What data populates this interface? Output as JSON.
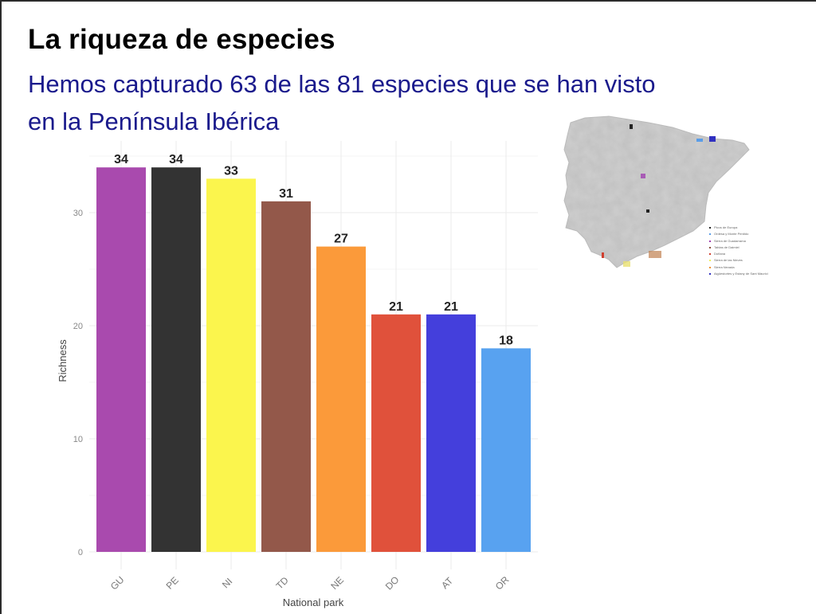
{
  "slide": {
    "title": "La riqueza de especies",
    "subtitle_line1": "Hemos capturado 63 de las 81 especies que se han visto",
    "subtitle_line2": "en la Península Ibérica",
    "title_color": "#000000",
    "subtitle_color": "#1a1a8c"
  },
  "map": {
    "legend": [
      {
        "label": "Picos de Europa",
        "color": "#222222"
      },
      {
        "label": "Ordesa y Monte Perdido",
        "color": "#5a9de8"
      },
      {
        "label": "Sierra de Guadarrama",
        "color": "#a040b0"
      },
      {
        "label": "Tablas de Daimiel",
        "color": "#8a5040"
      },
      {
        "label": "Doñana",
        "color": "#d04030"
      },
      {
        "label": "Sierra de las Nieves",
        "color": "#f0f060"
      },
      {
        "label": "Sierra Nevada",
        "color": "#f09030"
      },
      {
        "label": "Aigüestortes y Estany de Sant Maurici",
        "color": "#3030c0"
      }
    ]
  },
  "chart_data": {
    "type": "bar",
    "title": "",
    "xlabel": "National park",
    "ylabel": "Richness",
    "categories": [
      "GU",
      "PE",
      "NI",
      "TD",
      "NE",
      "DO",
      "AT",
      "OR"
    ],
    "values": [
      34,
      34,
      33,
      31,
      27,
      21,
      21,
      18
    ],
    "colors": [
      "#a94aae",
      "#333333",
      "#fbf54d",
      "#93584a",
      "#fb9a3a",
      "#e0513b",
      "#443fdc",
      "#58a2f0"
    ],
    "data_labels": [
      "34",
      "34",
      "33",
      "31",
      "27",
      "21",
      "21",
      "18"
    ],
    "yticks": [
      0,
      10,
      20,
      30
    ],
    "ytick_labels": [
      "0",
      "10",
      "20",
      "30"
    ],
    "ylim": [
      0,
      35.5
    ],
    "grid": true,
    "legend": "none"
  }
}
